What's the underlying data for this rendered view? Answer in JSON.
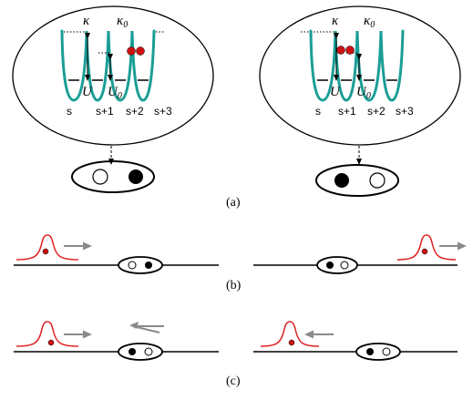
{
  "colors": {
    "well": "#1a9e96",
    "particle": "#cc1111",
    "wavepacket": "#e02020",
    "arrow": "#8a8a8a",
    "ink": "#000000"
  },
  "panel_a": {
    "left": {
      "kappa": "κ",
      "kappa0": "κ",
      "kappa0_sub": "0",
      "U": "U",
      "U0": "U",
      "U0_sub": "0",
      "sites": [
        "s",
        "s+1",
        "s+2",
        "s+3"
      ]
    },
    "right": {
      "kappa": "κ",
      "kappa0": "κ",
      "kappa0_sub": "0",
      "U": "U",
      "U0": "U",
      "U0_sub": "0",
      "sites": [
        "s",
        "s+1",
        "s+2",
        "s+3"
      ]
    },
    "caption": "(a)"
  },
  "panel_b": {
    "caption": "(b)"
  },
  "panel_c": {
    "caption": "(c)"
  },
  "icons": {
    "down_arrow": "dashed-down-arrow-icon",
    "right_arrow": "gray-right-arrow-icon",
    "left_arrow": "gray-left-arrow-icon",
    "reflect_arrow": "reflection-arrow-icon"
  }
}
